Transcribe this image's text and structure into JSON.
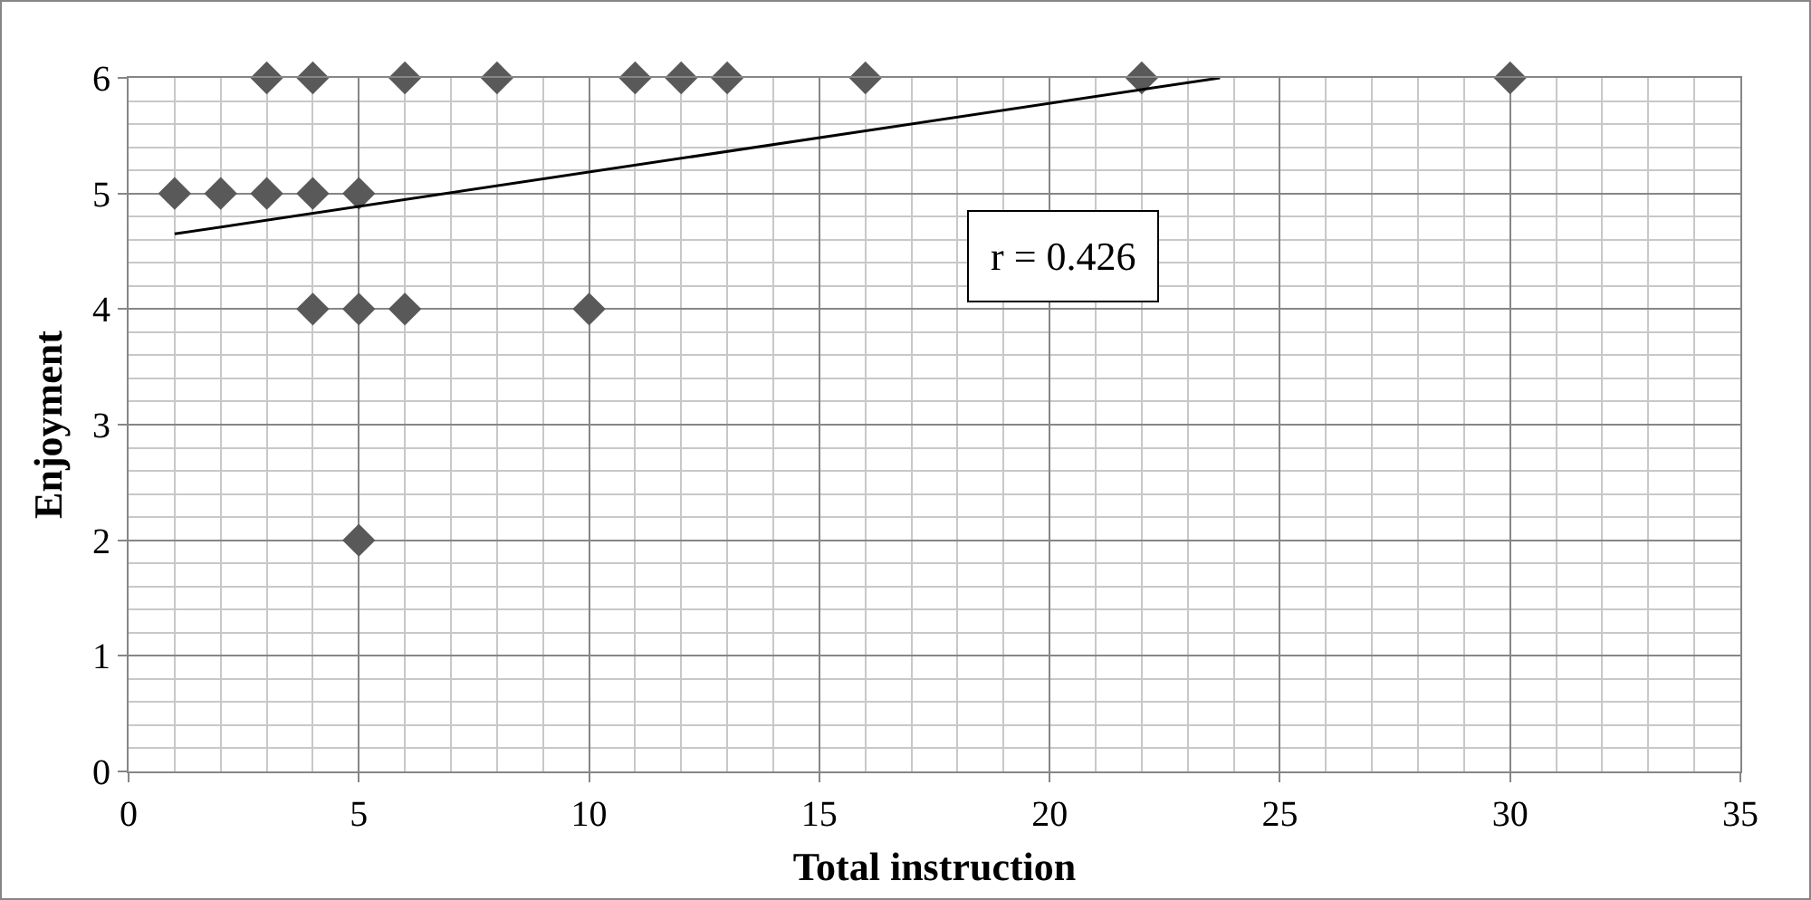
{
  "chart_data": {
    "type": "scatter",
    "xlabel": "Total instruction",
    "ylabel": "Enjoyment",
    "xlim": [
      0,
      35
    ],
    "xticks": [
      0,
      5,
      10,
      15,
      20,
      25,
      30,
      35
    ],
    "ylim": [
      0,
      6
    ],
    "yticks": [
      0,
      1,
      2,
      3,
      4,
      5,
      6
    ],
    "grid": true,
    "marker": "diamond",
    "annotations": [
      "r = 0.426"
    ],
    "series": [
      {
        "type": "scatter",
        "color": "#595959",
        "x": [
          1,
          2,
          3,
          3,
          4,
          4,
          4,
          5,
          5,
          5,
          6,
          6,
          8,
          10,
          11,
          12,
          13,
          16,
          22,
          30
        ],
        "values": [
          5,
          5,
          5,
          6,
          6,
          5,
          4,
          5,
          4,
          2,
          6,
          4,
          6,
          4,
          6,
          6,
          6,
          6,
          6,
          6
        ]
      },
      {
        "type": "line",
        "color": "#000000",
        "marker": "none",
        "x": [
          1,
          23.7
        ],
        "values": [
          4.65,
          6
        ]
      }
    ]
  }
}
